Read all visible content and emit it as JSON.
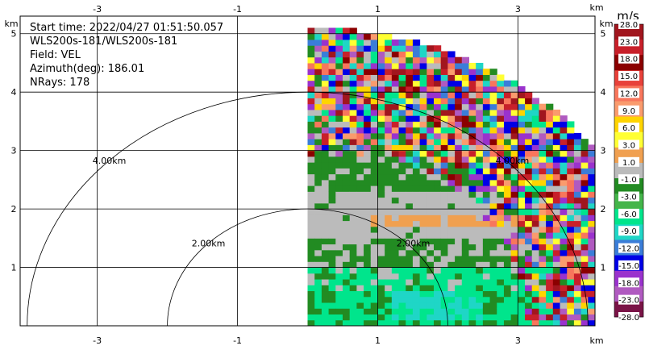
{
  "info": {
    "start_time": "Start time: 2022/04/27 01:51:50.057",
    "site": "WLS200s-181/WLS200s-181",
    "field": "Field: VEL",
    "azimuth": "Azimuth(deg): 186.01",
    "nrays": "NRays: 178"
  },
  "chart_data": {
    "type": "heatmap",
    "title": "",
    "xlabel": "",
    "ylabel": "",
    "xlim": [
      -4.1,
      4.1
    ],
    "ylim": [
      0,
      5.3
    ],
    "x_unit": "km",
    "y_unit": "km",
    "x_ticks": [
      "-3",
      "-1",
      "1",
      "3"
    ],
    "x_tick_values": [
      -3,
      -1,
      1,
      3
    ],
    "y_ticks": [
      "1",
      "2",
      "3",
      "4",
      "5"
    ],
    "y_tick_values": [
      1,
      2,
      3,
      4,
      5
    ],
    "grid": true,
    "range_rings": [
      {
        "radius_km": 2.0,
        "label": "2.00km"
      },
      {
        "radius_km": 4.0,
        "label": "4.00km"
      }
    ],
    "sector": {
      "azimuth_start_deg": 0,
      "azimuth_end_deg": 90,
      "max_range_km": 5.1
    },
    "colorbar": {
      "unit": "m/s",
      "tick_labels": [
        "28.0",
        "23.0",
        "18.0",
        "15.0",
        "12.0",
        "9.0",
        "6.0",
        "3.0",
        "1.0",
        "-1.0",
        "-3.0",
        "-6.0",
        "-9.0",
        "-12.0",
        "-15.0",
        "-18.0",
        "-23.0",
        "-28.0"
      ],
      "colors": [
        "#a1161e",
        "#c8202a",
        "#8b0000",
        "#e8413a",
        "#f8765c",
        "#fa9b6d",
        "#ffd400",
        "#ffff33",
        "#f0a050",
        "#bbbbbb",
        "#228b22",
        "#44b54a",
        "#00e58c",
        "#1fd6c6",
        "#3b7dd8",
        "#0000e6",
        "#9a32cd",
        "#b05ac0",
        "#7a1447"
      ]
    },
    "velocity_regions": [
      {
        "label": "near-zero (-1.0 to 1.0)",
        "color": "#bbbbbb"
      },
      {
        "label": "-3.0 to -1.0",
        "color": "#228b22"
      },
      {
        "label": "-9.0 to -6.0",
        "color": "#00e58c"
      },
      {
        "label": "-12.0 to -9.0",
        "color": "#1fd6c6"
      },
      {
        "label": "1.0 to 3.0",
        "color": "#f0a050"
      }
    ]
  }
}
